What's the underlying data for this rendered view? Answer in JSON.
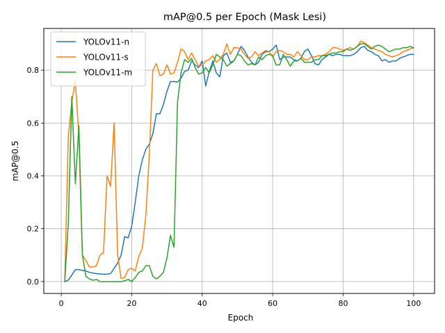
{
  "chart_data": {
    "type": "line",
    "title": "mAP@0.5 per Epoch (Mask Lesi)",
    "xlabel": "Epoch",
    "ylabel": "mAP@0.5",
    "xlim": [
      -4.95,
      105.95
    ],
    "ylim": [
      -0.045,
      0.958
    ],
    "xticks": [
      0,
      20,
      40,
      60,
      80,
      100
    ],
    "yticks": [
      0.0,
      0.2,
      0.4,
      0.6,
      0.8
    ],
    "xtick_labels": [
      "0",
      "20",
      "40",
      "60",
      "80",
      "100"
    ],
    "ytick_labels": [
      "0.0",
      "0.2",
      "0.4",
      "0.6",
      "0.8"
    ],
    "grid": true,
    "legend_position": "upper-left",
    "x": [
      1,
      2,
      3,
      4,
      5,
      6,
      7,
      8,
      9,
      10,
      11,
      12,
      13,
      14,
      15,
      16,
      17,
      18,
      19,
      20,
      21,
      22,
      23,
      24,
      25,
      26,
      27,
      28,
      29,
      30,
      31,
      32,
      33,
      34,
      35,
      36,
      37,
      38,
      39,
      40,
      41,
      42,
      43,
      44,
      45,
      46,
      47,
      48,
      49,
      50,
      51,
      52,
      53,
      54,
      55,
      56,
      57,
      58,
      59,
      60,
      61,
      62,
      63,
      64,
      65,
      66,
      67,
      68,
      69,
      70,
      71,
      72,
      73,
      74,
      75,
      76,
      77,
      78,
      79,
      80,
      81,
      82,
      83,
      84,
      85,
      86,
      87,
      88,
      89,
      90,
      91,
      92,
      93,
      94,
      95,
      96,
      97,
      98,
      99,
      100
    ],
    "series": [
      {
        "name": "YOLOv11-n",
        "color": "#1f77b4",
        "values": [
          0.0,
          0.005,
          0.025,
          0.045,
          0.045,
          0.042,
          0.04,
          0.035,
          0.032,
          0.03,
          0.029,
          0.028,
          0.028,
          0.03,
          0.05,
          0.07,
          0.1,
          0.17,
          0.165,
          0.21,
          0.3,
          0.4,
          0.46,
          0.5,
          0.52,
          0.56,
          0.635,
          0.635,
          0.67,
          0.72,
          0.757,
          0.757,
          0.755,
          0.77,
          0.795,
          0.8,
          0.835,
          0.82,
          0.81,
          0.835,
          0.74,
          0.795,
          0.835,
          0.79,
          0.775,
          0.855,
          0.865,
          0.83,
          0.835,
          0.86,
          0.89,
          0.875,
          0.85,
          0.83,
          0.82,
          0.83,
          0.86,
          0.87,
          0.87,
          0.88,
          0.895,
          0.84,
          0.85,
          0.85,
          0.85,
          0.84,
          0.835,
          0.845,
          0.87,
          0.88,
          0.855,
          0.825,
          0.82,
          0.84,
          0.85,
          0.86,
          0.855,
          0.86,
          0.86,
          0.855,
          0.855,
          0.855,
          0.86,
          0.87,
          0.885,
          0.89,
          0.875,
          0.87,
          0.86,
          0.855,
          0.835,
          0.84,
          0.83,
          0.835,
          0.835,
          0.845,
          0.85,
          0.855,
          0.86,
          0.86
        ]
      },
      {
        "name": "YOLOv11-s",
        "color": "#ff7f0e",
        "values": [
          0.0,
          0.55,
          0.68,
          0.76,
          0.55,
          0.1,
          0.08,
          0.055,
          0.055,
          0.06,
          0.1,
          0.11,
          0.4,
          0.36,
          0.6,
          0.1,
          0.012,
          0.015,
          0.045,
          0.05,
          0.04,
          0.095,
          0.125,
          0.25,
          0.48,
          0.8,
          0.825,
          0.78,
          0.785,
          0.82,
          0.785,
          0.79,
          0.83,
          0.88,
          0.87,
          0.84,
          0.865,
          0.84,
          0.815,
          0.82,
          0.835,
          0.84,
          0.855,
          0.83,
          0.84,
          0.86,
          0.9,
          0.86,
          0.885,
          0.885,
          0.88,
          0.86,
          0.845,
          0.85,
          0.87,
          0.855,
          0.865,
          0.875,
          0.87,
          0.85,
          0.87,
          0.875,
          0.87,
          0.86,
          0.86,
          0.85,
          0.87,
          0.855,
          0.84,
          0.84,
          0.85,
          0.85,
          0.855,
          0.855,
          0.86,
          0.87,
          0.885,
          0.885,
          0.88,
          0.875,
          0.88,
          0.885,
          0.88,
          0.89,
          0.91,
          0.905,
          0.895,
          0.885,
          0.88,
          0.875,
          0.87,
          0.86,
          0.855,
          0.85,
          0.855,
          0.86,
          0.87,
          0.875,
          0.88,
          0.885
        ]
      },
      {
        "name": "YOLOv11-m",
        "color": "#2ca02c",
        "values": [
          0.0,
          0.22,
          0.7,
          0.37,
          0.59,
          0.1,
          0.02,
          0.01,
          0.005,
          0.008,
          0.0,
          0.0,
          0.0,
          0.0,
          0.0,
          0.0,
          0.0,
          0.003,
          0.008,
          0.0,
          0.015,
          0.035,
          0.04,
          0.06,
          0.06,
          0.02,
          0.01,
          0.02,
          0.035,
          0.09,
          0.175,
          0.13,
          0.68,
          0.79,
          0.84,
          0.83,
          0.845,
          0.81,
          0.785,
          0.79,
          0.81,
          0.79,
          0.82,
          0.86,
          0.85,
          0.84,
          0.815,
          0.825,
          0.835,
          0.86,
          0.855,
          0.835,
          0.82,
          0.825,
          0.82,
          0.85,
          0.84,
          0.855,
          0.86,
          0.855,
          0.82,
          0.82,
          0.86,
          0.84,
          0.815,
          0.835,
          0.835,
          0.845,
          0.83,
          0.83,
          0.83,
          0.84,
          0.84,
          0.855,
          0.855,
          0.86,
          0.865,
          0.865,
          0.87,
          0.87,
          0.88,
          0.875,
          0.88,
          0.89,
          0.9,
          0.9,
          0.89,
          0.88,
          0.89,
          0.895,
          0.89,
          0.88,
          0.87,
          0.875,
          0.88,
          0.88,
          0.885,
          0.885,
          0.89,
          0.885
        ]
      }
    ]
  }
}
